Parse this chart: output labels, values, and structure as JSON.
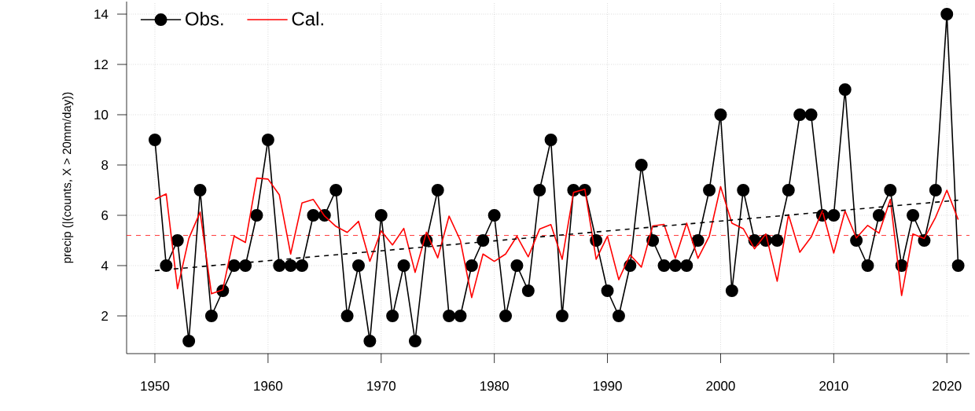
{
  "chart_data": {
    "type": "line",
    "ylabel": "precip  (|(counts, X > 20mm/day))",
    "x": [
      1950,
      1951,
      1952,
      1953,
      1954,
      1955,
      1956,
      1957,
      1958,
      1959,
      1960,
      1961,
      1962,
      1963,
      1964,
      1965,
      1966,
      1967,
      1968,
      1969,
      1970,
      1971,
      1972,
      1973,
      1974,
      1975,
      1976,
      1977,
      1978,
      1979,
      1980,
      1981,
      1982,
      1983,
      1984,
      1985,
      1986,
      1987,
      1988,
      1989,
      1990,
      1991,
      1992,
      1993,
      1994,
      1995,
      1996,
      1997,
      1998,
      1999,
      2000,
      2001,
      2002,
      2003,
      2004,
      2005,
      2006,
      2007,
      2008,
      2009,
      2010,
      2011,
      2012,
      2013,
      2014,
      2015,
      2016,
      2017,
      2018,
      2019,
      2020,
      2021
    ],
    "series": [
      {
        "name": "Obs.",
        "color": "#000000",
        "marker": "circle",
        "values": [
          9,
          4,
          5,
          1,
          7,
          2,
          3,
          4,
          4,
          6,
          9,
          4,
          4,
          4,
          6,
          6,
          7,
          2,
          4,
          1,
          6,
          2,
          4,
          1,
          5,
          7,
          2,
          2,
          4,
          5,
          6,
          2,
          4,
          3,
          7,
          9,
          2,
          7,
          7,
          5,
          3,
          2,
          4,
          8,
          5,
          4,
          4,
          4,
          5,
          7,
          10,
          3,
          7,
          5,
          5,
          5,
          7,
          10,
          10,
          6,
          6,
          11,
          5,
          4,
          6,
          7,
          4,
          6,
          5,
          7,
          14,
          4
        ]
      },
      {
        "name": "Cal.",
        "color": "#ff0000",
        "marker": "none",
        "values": [
          6.63,
          6.85,
          3.08,
          5.08,
          6.13,
          2.88,
          3.04,
          5.17,
          4.92,
          7.48,
          7.44,
          6.81,
          4.46,
          6.49,
          6.63,
          5.97,
          5.56,
          5.32,
          5.76,
          4.17,
          5.38,
          4.82,
          5.48,
          3.73,
          5.33,
          4.31,
          5.97,
          5.0,
          2.73,
          4.46,
          4.17,
          4.46,
          5.17,
          4.35,
          5.45,
          5.63,
          4.25,
          6.91,
          7.04,
          4.25,
          5.17,
          3.44,
          4.43,
          3.94,
          5.58,
          5.64,
          4.29,
          5.69,
          4.29,
          5.17,
          7.14,
          5.69,
          5.47,
          4.67,
          5.26,
          3.38,
          6.02,
          4.53,
          5.13,
          6.18,
          4.5,
          6.17,
          5.1,
          5.6,
          5.29,
          6.63,
          2.81,
          5.26,
          5.08,
          5.92,
          7.0,
          5.83
        ]
      },
      {
        "type": "line",
        "x": [
          1950,
          2021
        ],
        "values": [
          3.8,
          6.6
        ],
        "color": "#000000",
        "marker": "none",
        "line_style": "dashed"
      }
    ],
    "ref_lines": [
      {
        "axis": "y",
        "value": 5.2,
        "color": "#ff0000",
        "line_style": "dashed"
      }
    ],
    "xlim": [
      1947.5,
      2022
    ],
    "ylim": [
      0.5,
      14.5
    ],
    "xticks": [
      1950,
      1960,
      1970,
      1980,
      1990,
      2000,
      2010,
      2020
    ],
    "yticks": [
      2,
      4,
      6,
      8,
      10,
      12,
      14
    ],
    "grid": true,
    "legend": "top left",
    "line_style": "solid"
  }
}
